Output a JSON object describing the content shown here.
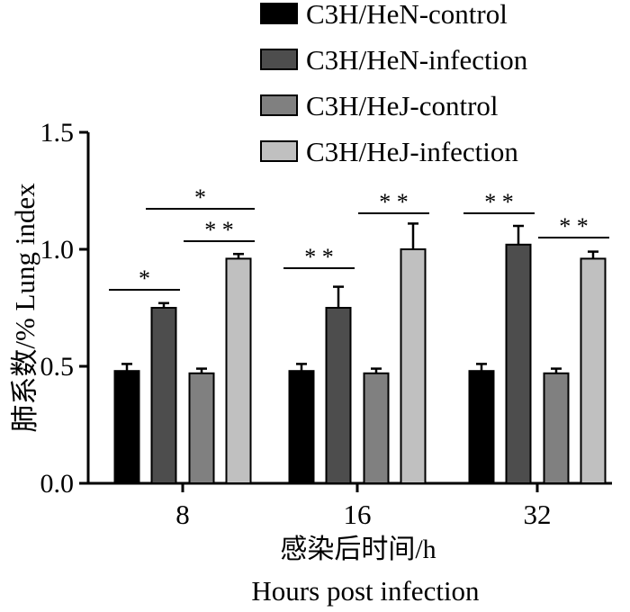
{
  "chart_data": {
    "type": "bar",
    "title": "",
    "xlabel": [
      "感染后时间/h",
      "Hours post infection"
    ],
    "ylabel": "肺系数/%  Lung index",
    "ylim": [
      0,
      1.5
    ],
    "yticks": [
      "0.0",
      "0.5",
      "1.0",
      "1.5"
    ],
    "categories": [
      "8",
      "16",
      "32"
    ],
    "grid": false,
    "legend": "top-right",
    "series": [
      {
        "name": "C3H/HeN-control",
        "color": "#000000",
        "values": [
          0.48,
          0.48,
          0.48
        ],
        "errors": [
          0.03,
          0.03,
          0.03
        ]
      },
      {
        "name": "C3H/HeN-infection",
        "color": "#4d4d4d",
        "values": [
          0.75,
          0.75,
          1.02
        ],
        "errors": [
          0.02,
          0.09,
          0.08
        ]
      },
      {
        "name": "C3H/HeJ-control",
        "color": "#808080",
        "values": [
          0.47,
          0.47,
          0.47
        ],
        "errors": [
          0.02,
          0.02,
          0.02
        ]
      },
      {
        "name": "C3H/HeJ-infection",
        "color": "#c0c0c0",
        "values": [
          0.96,
          1.0,
          0.96
        ],
        "errors": [
          0.02,
          0.11,
          0.03
        ]
      }
    ],
    "significance": [
      {
        "category": "8",
        "from_series": 0,
        "to_series": 1,
        "label": "*"
      },
      {
        "category": "8",
        "from_series": 1,
        "to_series": 3,
        "label": "*"
      },
      {
        "category": "8",
        "from_series": 2,
        "to_series": 3,
        "label": "**"
      },
      {
        "category": "16",
        "from_series": 0,
        "to_series": 1,
        "label": "**"
      },
      {
        "category": "16",
        "from_series": 2,
        "to_series": 3,
        "label": "**"
      },
      {
        "category": "32",
        "from_series": 0,
        "to_series": 1,
        "label": "**"
      },
      {
        "category": "32",
        "from_series": 2,
        "to_series": 3,
        "label": "**"
      }
    ]
  }
}
